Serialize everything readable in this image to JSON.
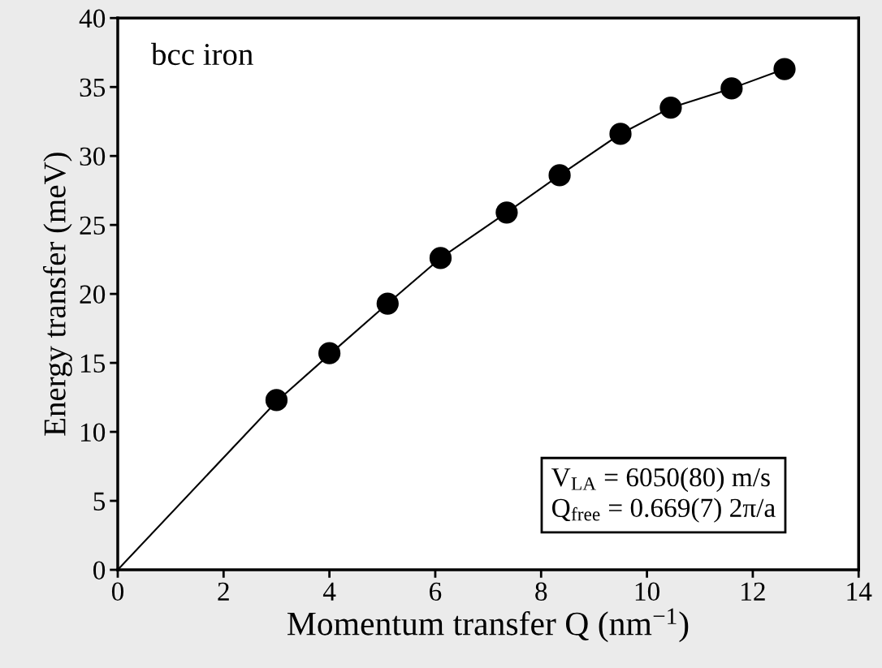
{
  "chart_data": {
    "type": "scatter",
    "xlabel": "Momentum transfer Q (nm$^{−1}$)",
    "ylabel": "Energy transfer (meV)",
    "series": [
      {
        "color": "#000000",
        "marker": "circle",
        "x": [
          3.0,
          4.0,
          5.1,
          6.1,
          7.35,
          8.35,
          9.5,
          10.45,
          11.6,
          12.6
        ],
        "values": [
          12.3,
          15.7,
          19.3,
          22.6,
          25.9,
          28.6,
          31.6,
          33.5,
          34.9,
          36.3
        ]
      },
      {
        "type": "line",
        "color": "#000000",
        "marker": "none",
        "x": [
          0,
          3.0,
          4.0,
          5.1,
          6.1,
          7.35,
          8.35,
          9.5,
          10.45,
          11.6,
          12.6
        ],
        "values": [
          0,
          12.2,
          15.6,
          19.3,
          22.6,
          25.9,
          28.6,
          31.6,
          33.5,
          34.9,
          36.3
        ]
      }
    ],
    "annotations": [
      "bcc iron",
      "V$_{LA}$ = 6050(80) m/s",
      "Q$_{free}$ = 0.669(7) 2π/a"
    ],
    "xlim": [
      0,
      14
    ],
    "xticks": [
      0,
      2,
      4,
      6,
      8,
      10,
      12,
      14
    ],
    "ylim": [
      0,
      40
    ],
    "yticks": [
      0,
      5,
      10,
      15,
      20,
      25,
      30,
      35,
      40
    ],
    "grid": false,
    "legend": false
  }
}
